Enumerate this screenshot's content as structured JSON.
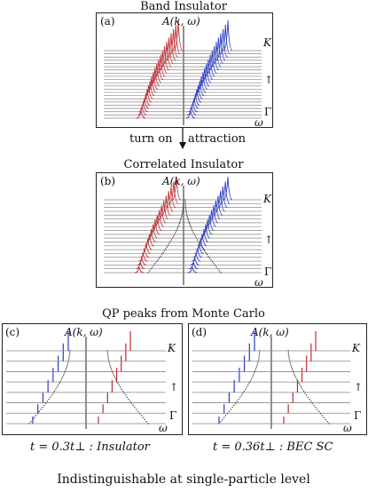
{
  "title_top": "Band Insulator",
  "arrow_label_left": "turn on",
  "arrow_label_right": "attraction",
  "title_mid": "Correlated Insulator",
  "title_lower": "QP peaks from Monte Carlo",
  "bottom_caption": "Indistinguishable at single-particle level",
  "panels": [
    {
      "id": "a",
      "label": "(a)",
      "func_label": "A(k, ω)",
      "k_top": "K",
      "k_bottom": "Γ",
      "omega": "ω",
      "arrow": "↑"
    },
    {
      "id": "b",
      "label": "(b)",
      "func_label": "A(k, ω)",
      "k_top": "K",
      "k_bottom": "Γ",
      "omega": "ω",
      "arrow": "↑"
    },
    {
      "id": "c",
      "label": "(c)",
      "func_label": "A(k, ω)",
      "k_top": "K",
      "k_bottom": "Γ",
      "omega": "ω",
      "arrow": "↑",
      "caption": "t = 0.3t⊥ : Insulator"
    },
    {
      "id": "d",
      "label": "(d)",
      "func_label": "A(k, ω)",
      "k_top": "K",
      "k_bottom": "Γ",
      "omega": "ω",
      "arrow": "↑",
      "caption": "t = 0.36t⊥ : BEC SC"
    }
  ],
  "colors": {
    "red": "#c0282f",
    "blue": "#2a3ac4",
    "line": "#888888",
    "dots": "#333333"
  }
}
